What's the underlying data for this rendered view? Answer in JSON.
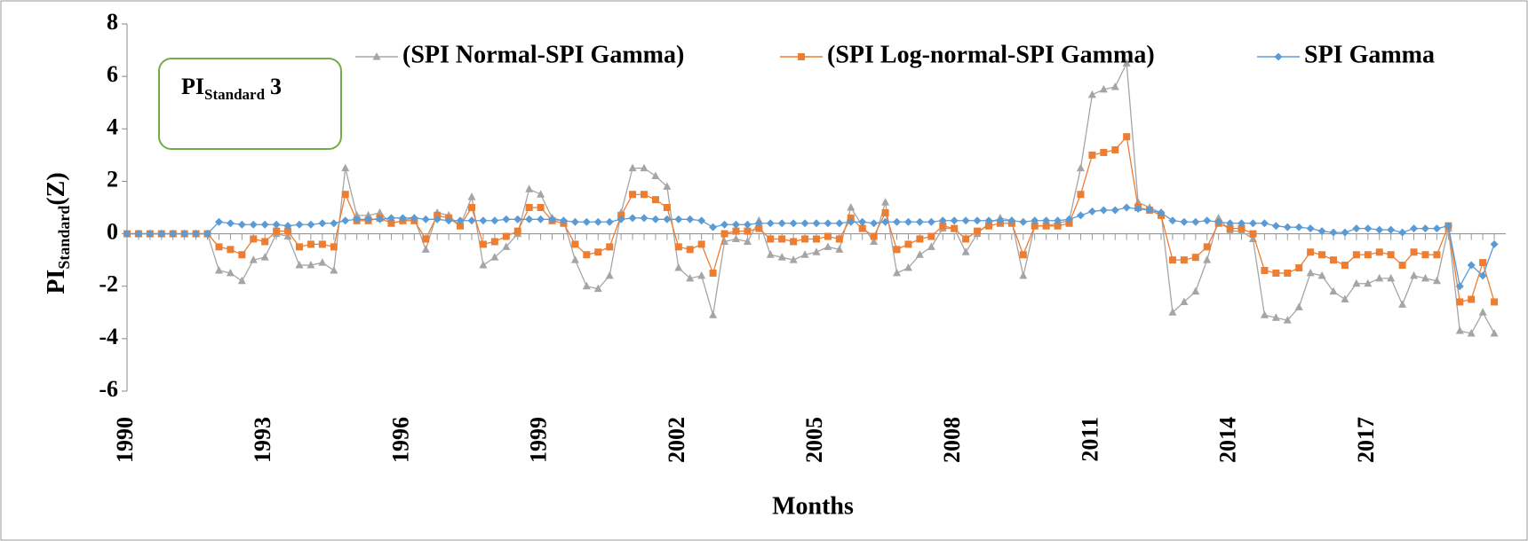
{
  "chart_data": {
    "type": "line",
    "y_label": [
      "PI",
      "Standard",
      "(Z)"
    ],
    "x_label": "Months",
    "annotation": [
      "PI",
      "Standard",
      "3"
    ],
    "categories": [
      "1990",
      null,
      null,
      null,
      null,
      null,
      null,
      null,
      null,
      null,
      null,
      null,
      "1993",
      null,
      null,
      null,
      null,
      null,
      null,
      null,
      null,
      null,
      null,
      null,
      "1996",
      null,
      null,
      null,
      null,
      null,
      null,
      null,
      null,
      null,
      null,
      null,
      "1999",
      null,
      null,
      null,
      null,
      null,
      null,
      null,
      null,
      null,
      null,
      null,
      "2002",
      null,
      null,
      null,
      null,
      null,
      null,
      null,
      null,
      null,
      null,
      null,
      "2005",
      null,
      null,
      null,
      null,
      null,
      null,
      null,
      null,
      null,
      null,
      null,
      "2008",
      null,
      null,
      null,
      null,
      null,
      null,
      null,
      null,
      null,
      null,
      null,
      "2011",
      null,
      null,
      null,
      null,
      null,
      null,
      null,
      null,
      null,
      null,
      null,
      "2014",
      null,
      null,
      null,
      null,
      null,
      null,
      null,
      null,
      null,
      null,
      null,
      "2017",
      null,
      null,
      null,
      null,
      null,
      null,
      null,
      null,
      null,
      null,
      null
    ],
    "ylim": [
      -6,
      8
    ],
    "yticks": [
      -6,
      -4,
      -2,
      0,
      2,
      4,
      6,
      8
    ],
    "series": [
      {
        "name": "(SPI Normal-SPI Gamma)",
        "color": "#a5a5a5",
        "marker": "triangle",
        "values": [
          0,
          0,
          0,
          0,
          0,
          0,
          0,
          0,
          -1.4,
          -1.5,
          -1.8,
          -1.0,
          -0.9,
          0.0,
          -0.1,
          -1.2,
          -1.2,
          -1.1,
          -1.4,
          2.5,
          0.7,
          0.7,
          0.8,
          0.4,
          0.5,
          0.6,
          -0.6,
          0.8,
          0.7,
          0.3,
          1.4,
          -1.2,
          -0.9,
          -0.5,
          0.0,
          1.7,
          1.5,
          0.6,
          0.5,
          -1.0,
          -2.0,
          -2.1,
          -1.6,
          0.8,
          2.5,
          2.5,
          2.2,
          1.8,
          -1.3,
          -1.7,
          -1.6,
          -3.1,
          -0.3,
          -0.2,
          -0.3,
          0.5,
          -0.8,
          -0.9,
          -1.0,
          -0.8,
          -0.7,
          -0.5,
          -0.6,
          1.0,
          0.3,
          -0.3,
          1.2,
          -1.5,
          -1.3,
          -0.8,
          -0.5,
          0.2,
          0.2,
          -0.7,
          0.0,
          0.4,
          0.6,
          0.5,
          -1.6,
          0.3,
          0.3,
          0.4,
          0.5,
          2.5,
          5.3,
          5.5,
          5.6,
          6.5,
          1.2,
          1.0,
          0.8,
          -3.0,
          -2.6,
          -2.2,
          -1.0,
          0.6,
          0.1,
          0.1,
          -0.2,
          -3.1,
          -3.2,
          -3.3,
          -2.8,
          -1.5,
          -1.6,
          -2.2,
          -2.5,
          -1.9,
          -1.9,
          -1.7,
          -1.7,
          -2.7,
          -1.6,
          -1.7,
          -1.8,
          0.2,
          -3.7,
          -3.8,
          -3.0,
          -3.8
        ]
      },
      {
        "name": "(SPI Log-normal-SPI Gamma)",
        "color": "#ed7d31",
        "marker": "square",
        "values": [
          0,
          0,
          0,
          0,
          0,
          0,
          0,
          0,
          -0.5,
          -0.6,
          -0.8,
          -0.2,
          -0.3,
          0.1,
          0.1,
          -0.5,
          -0.4,
          -0.4,
          -0.5,
          1.5,
          0.5,
          0.5,
          0.6,
          0.4,
          0.5,
          0.5,
          -0.2,
          0.7,
          0.6,
          0.3,
          1.0,
          -0.4,
          -0.3,
          -0.1,
          0.1,
          1.0,
          1.0,
          0.5,
          0.4,
          -0.4,
          -0.8,
          -0.7,
          -0.5,
          0.7,
          1.5,
          1.5,
          1.3,
          1.0,
          -0.5,
          -0.6,
          -0.4,
          -1.5,
          0.0,
          0.1,
          0.1,
          0.2,
          -0.2,
          -0.2,
          -0.3,
          -0.2,
          -0.2,
          -0.1,
          -0.2,
          0.6,
          0.2,
          -0.1,
          0.8,
          -0.6,
          -0.4,
          -0.2,
          -0.1,
          0.3,
          0.2,
          -0.2,
          0.1,
          0.3,
          0.4,
          0.4,
          -0.8,
          0.3,
          0.3,
          0.3,
          0.4,
          1.5,
          3.0,
          3.1,
          3.2,
          3.7,
          1.0,
          0.9,
          0.7,
          -1.0,
          -1.0,
          -0.9,
          -0.5,
          0.4,
          0.2,
          0.2,
          0.0,
          -1.4,
          -1.5,
          -1.5,
          -1.3,
          -0.7,
          -0.8,
          -1.0,
          -1.2,
          -0.8,
          -0.8,
          -0.7,
          -0.8,
          -1.2,
          -0.7,
          -0.8,
          -0.8,
          0.3,
          -2.6,
          -2.5,
          -1.1,
          -2.6
        ]
      },
      {
        "name": "SPI Gamma",
        "color": "#5b9bd5",
        "marker": "diamond",
        "values": [
          0,
          0,
          0,
          0,
          0,
          0,
          0,
          0,
          0.45,
          0.4,
          0.35,
          0.35,
          0.35,
          0.35,
          0.3,
          0.35,
          0.35,
          0.4,
          0.4,
          0.5,
          0.55,
          0.55,
          0.55,
          0.6,
          0.6,
          0.6,
          0.55,
          0.55,
          0.5,
          0.5,
          0.5,
          0.5,
          0.5,
          0.55,
          0.55,
          0.55,
          0.55,
          0.55,
          0.5,
          0.45,
          0.45,
          0.45,
          0.45,
          0.55,
          0.6,
          0.6,
          0.55,
          0.55,
          0.55,
          0.55,
          0.5,
          0.25,
          0.35,
          0.35,
          0.35,
          0.4,
          0.4,
          0.4,
          0.4,
          0.4,
          0.4,
          0.4,
          0.4,
          0.45,
          0.45,
          0.4,
          0.45,
          0.45,
          0.45,
          0.45,
          0.45,
          0.5,
          0.5,
          0.5,
          0.5,
          0.5,
          0.5,
          0.5,
          0.45,
          0.5,
          0.5,
          0.5,
          0.55,
          0.7,
          0.85,
          0.9,
          0.9,
          1.0,
          0.95,
          0.9,
          0.8,
          0.5,
          0.45,
          0.45,
          0.5,
          0.45,
          0.4,
          0.4,
          0.4,
          0.4,
          0.3,
          0.25,
          0.25,
          0.2,
          0.1,
          0.05,
          0.05,
          0.2,
          0.2,
          0.15,
          0.15,
          0.05,
          0.2,
          0.2,
          0.2,
          0.3,
          -2.0,
          -1.2,
          -1.6,
          -0.4
        ]
      }
    ]
  }
}
